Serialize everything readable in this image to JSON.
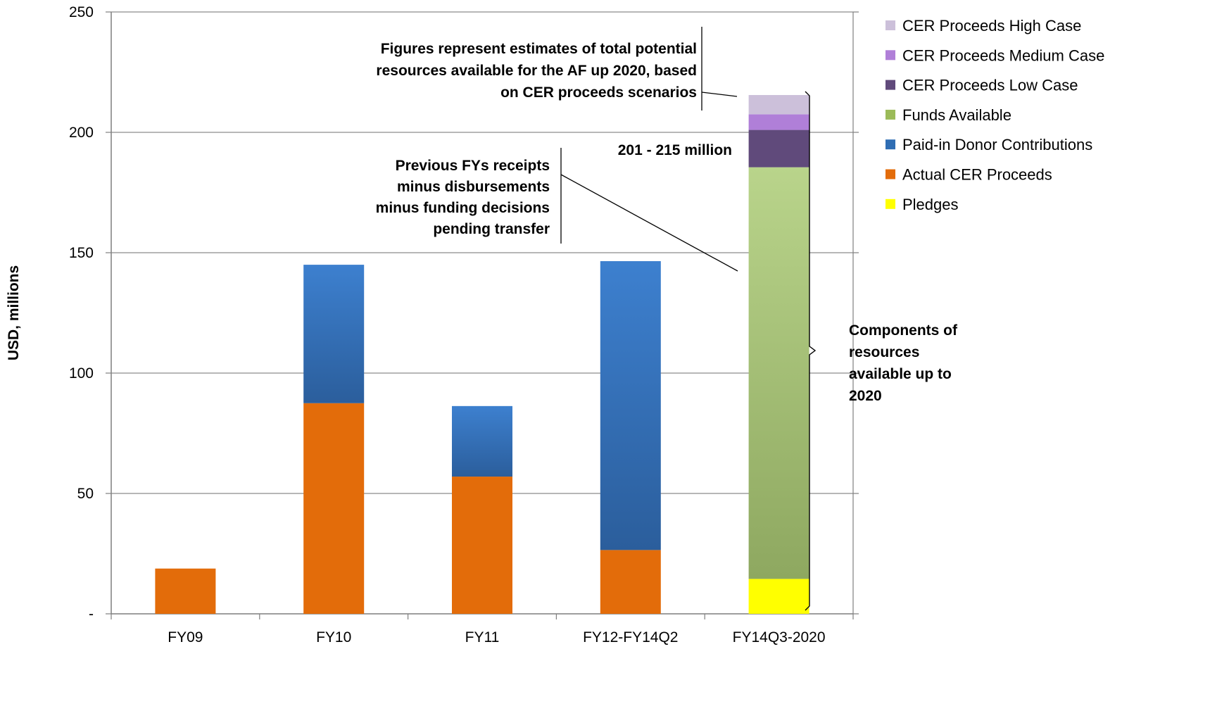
{
  "chart_data": {
    "type": "bar",
    "stacked": true,
    "categories": [
      "FY09",
      "FY10",
      "FY11",
      "FY12-FY14Q2",
      "FY14Q3-2020"
    ],
    "ylabel": "USD, millions",
    "ylim": [
      0,
      250
    ],
    "yticks": [
      0,
      50,
      100,
      150,
      200,
      250
    ],
    "ytick_labels": [
      "-",
      "50",
      "100",
      "150",
      "200",
      "250"
    ],
    "grid": true,
    "legend_position": "right",
    "series": [
      {
        "name": "Pledges",
        "color": "#ffff00",
        "values": [
          0,
          0,
          0,
          0,
          14.5
        ]
      },
      {
        "name": "Actual CER Proceeds",
        "color": "#e36c0a",
        "values": [
          18.8,
          87.5,
          57,
          26.5,
          0
        ]
      },
      {
        "name": "Paid-in Donor Contributions",
        "color": "#3a7bc8",
        "values": [
          0,
          57.5,
          29.3,
          120,
          0
        ]
      },
      {
        "name": "Funds Available",
        "color": "#9bbb59",
        "values": [
          0,
          0,
          0,
          0,
          171
        ]
      },
      {
        "name": "CER Proceeds Low Case",
        "color": "#604a7b",
        "values": [
          0,
          0,
          0,
          0,
          15.5
        ]
      },
      {
        "name": "CER Proceeds Medium Case",
        "color": "#b07fd8",
        "values": [
          0,
          0,
          0,
          0,
          6.5
        ]
      },
      {
        "name": "CER Proceeds High Case",
        "color": "#ccc0da",
        "values": [
          0,
          0,
          0,
          0,
          8
        ]
      }
    ],
    "legend_order": [
      "CER Proceeds High Case",
      "CER Proceeds Medium Case",
      "CER Proceeds Low Case",
      "Funds Available",
      "Paid-in Donor Contributions",
      "Actual CER Proceeds",
      "Pledges"
    ],
    "annotations": {
      "figures_note": [
        "Figures represent estimates of total potential",
        "resources available for the AF up 2020, based",
        "on CER proceeds scenarios"
      ],
      "range_label": "201 - 215 million",
      "previous_fys_note": [
        "Previous FYs receipts",
        "minus disbursements",
        "minus funding decisions",
        "pending transfer"
      ],
      "components_note": [
        "Components of",
        "resources",
        "available up to",
        "2020"
      ]
    }
  }
}
